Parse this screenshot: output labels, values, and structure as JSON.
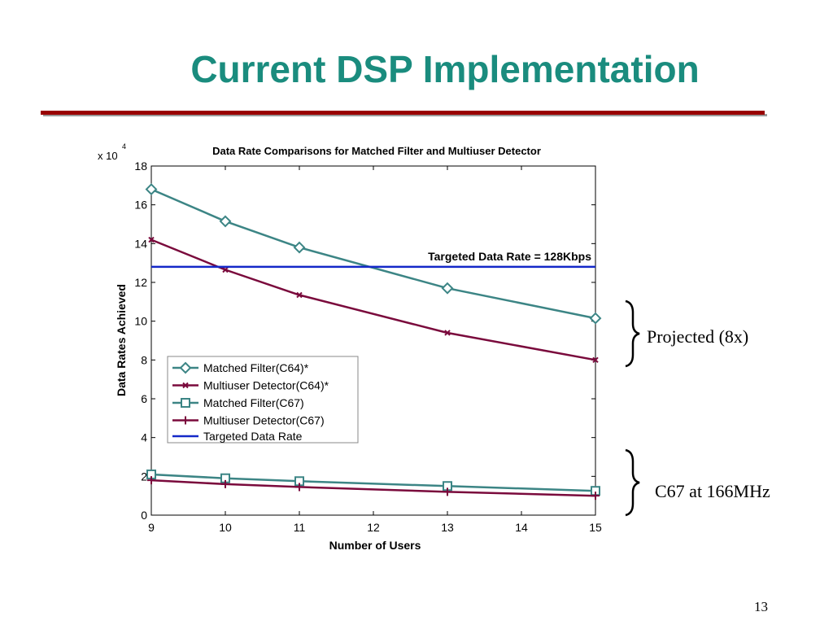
{
  "slide": {
    "title": "Current DSP Implementation",
    "page_number": "13",
    "brace_labels": [
      "Projected (8x)",
      "C67 at 166MHz"
    ]
  },
  "colors": {
    "title": "#1a8c7e",
    "rule": "#990000",
    "matched_filter": "#3c8585",
    "multiuser": "#7a0a3c",
    "targeted": "#1428c8"
  },
  "chart_data": {
    "type": "line",
    "title": "Data Rate Comparisons for Matched Filter and Multiuser Detector",
    "xlabel": "Number of Users",
    "ylabel": "Data Rates Achieved",
    "y_multiplier": "x 10",
    "y_exponent": "4",
    "xlim": [
      9,
      15
    ],
    "ylim": [
      0,
      18
    ],
    "x_ticks": [
      9,
      10,
      11,
      12,
      13,
      14,
      15
    ],
    "y_ticks": [
      0,
      2,
      4,
      6,
      8,
      10,
      12,
      14,
      16,
      18
    ],
    "grid": false,
    "legend_position": "lower-left",
    "x": [
      9,
      10,
      11,
      13,
      15
    ],
    "series": [
      {
        "name": "Matched Filter(C64)*",
        "marker": "diamond",
        "color": "#3c8585",
        "values": [
          16.8,
          15.15,
          13.8,
          11.7,
          10.15
        ]
      },
      {
        "name": "Multiuser Detector(C64)*",
        "marker": "x",
        "color": "#7a0a3c",
        "values": [
          14.2,
          12.65,
          11.35,
          9.4,
          8.0
        ]
      },
      {
        "name": "Matched Filter(C67)",
        "marker": "square",
        "color": "#3c8585",
        "values": [
          2.1,
          1.9,
          1.75,
          1.5,
          1.25
        ]
      },
      {
        "name": "Multiuser Detector(C67)",
        "marker": "plus",
        "color": "#7a0a3c",
        "values": [
          1.8,
          1.6,
          1.45,
          1.2,
          1.0
        ]
      },
      {
        "name": "Targeted Data Rate",
        "marker": "none",
        "color": "#1428c8",
        "values": [
          12.8,
          12.8,
          12.8,
          12.8,
          12.8
        ]
      }
    ],
    "annotation": "Targeted Data Rate = 128Kbps"
  }
}
